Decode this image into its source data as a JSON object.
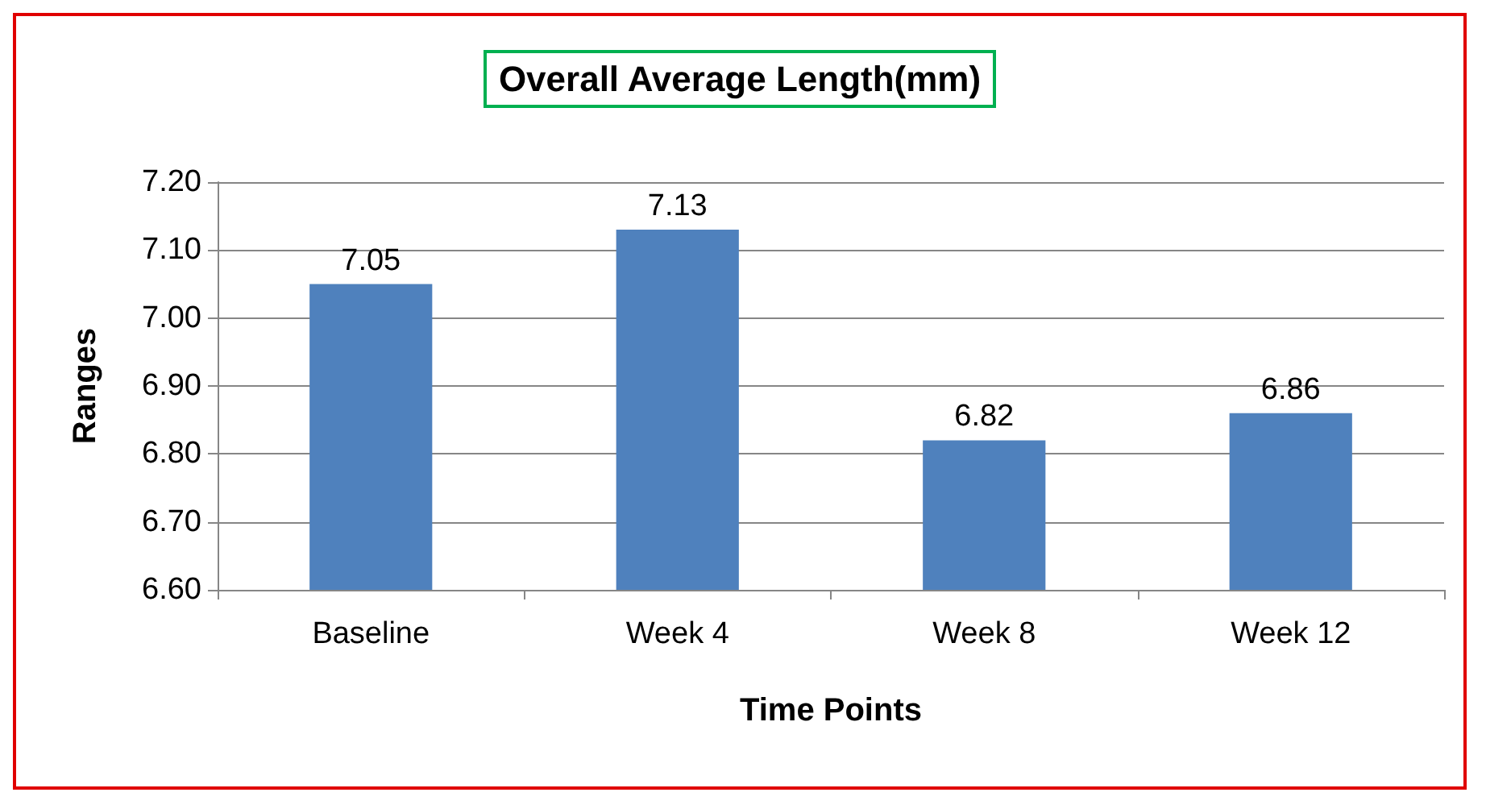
{
  "chart_data": {
    "type": "bar",
    "title": "Overall Average Length(mm)",
    "xlabel": "Time Points",
    "ylabel": "Ranges",
    "categories": [
      "Baseline",
      "Week 4",
      "Week 8",
      "Week 12"
    ],
    "values": [
      7.05,
      7.13,
      6.82,
      6.86
    ],
    "color": "#4f81bd",
    "data_labels": true,
    "ylim": [
      6.6,
      7.2
    ],
    "yticks": [
      "6.60",
      "6.70",
      "6.80",
      "6.90",
      "7.00",
      "7.10",
      "7.20"
    ],
    "grid": "y"
  }
}
